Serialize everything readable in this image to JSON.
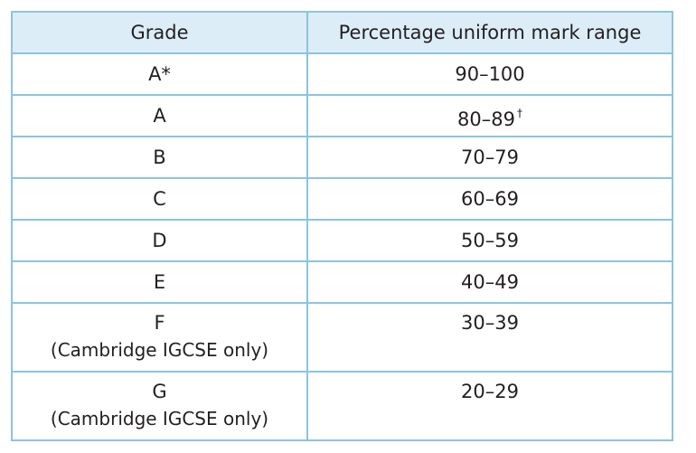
{
  "table": {
    "header": [
      "Grade",
      "Percentage uniform mark range"
    ],
    "rows": [
      {
        "grade": "A*",
        "range": "90–100"
      },
      {
        "grade": "A",
        "range": "80–89",
        "footnote": "†"
      },
      {
        "grade": "B",
        "range": "70–79"
      },
      {
        "grade": "C",
        "range": "60–69"
      },
      {
        "grade": "D",
        "range": "50–59"
      },
      {
        "grade": "E",
        "range": "40–49"
      },
      {
        "grade": "F",
        "note": "(Cambridge IGCSE only)",
        "range": "30–39"
      },
      {
        "grade": "G",
        "note": "(Cambridge IGCSE only)",
        "range": "20–29"
      }
    ]
  }
}
